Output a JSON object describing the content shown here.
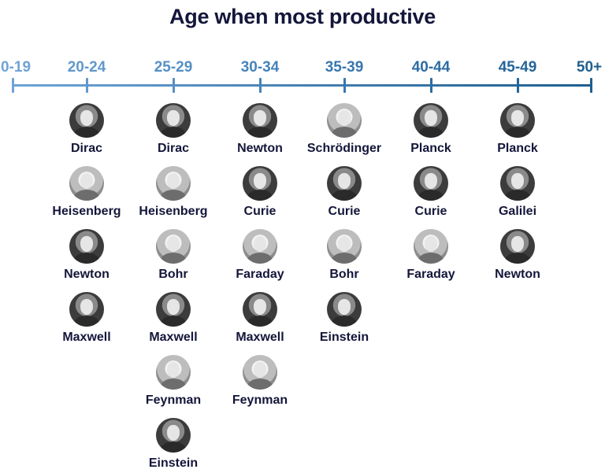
{
  "title": "Age when most productive",
  "colors": {
    "axis_start": "#6fa3d6",
    "axis_end": "#1f5f8f",
    "text": "#14163a"
  },
  "axis": {
    "labels": [
      "0-19",
      "20-24",
      "25-29",
      "30-34",
      "35-39",
      "40-44",
      "45-49",
      "50+"
    ],
    "label_colors": [
      "#6fa3d6",
      "#6198cc",
      "#5590c4",
      "#4583ba",
      "#3776ae",
      "#2c6ca3",
      "#24649a",
      "#1f5f8f"
    ]
  },
  "columns": [
    {
      "range": "20-24",
      "people": [
        {
          "name": "Dirac",
          "icon": "portrait-dirac"
        },
        {
          "name": "Heisenberg",
          "icon": "portrait-heisenberg"
        },
        {
          "name": "Newton",
          "icon": "portrait-newton"
        },
        {
          "name": "Maxwell",
          "icon": "portrait-maxwell"
        }
      ]
    },
    {
      "range": "25-29",
      "people": [
        {
          "name": "Dirac",
          "icon": "portrait-dirac"
        },
        {
          "name": "Heisenberg",
          "icon": "portrait-heisenberg"
        },
        {
          "name": "Bohr",
          "icon": "portrait-bohr"
        },
        {
          "name": "Maxwell",
          "icon": "portrait-maxwell"
        },
        {
          "name": "Feynman",
          "icon": "portrait-feynman"
        },
        {
          "name": "Einstein",
          "icon": "portrait-einstein"
        }
      ]
    },
    {
      "range": "30-34",
      "people": [
        {
          "name": "Newton",
          "icon": "portrait-newton"
        },
        {
          "name": "Curie",
          "icon": "portrait-curie"
        },
        {
          "name": "Faraday",
          "icon": "portrait-faraday"
        },
        {
          "name": "Maxwell",
          "icon": "portrait-maxwell"
        },
        {
          "name": "Feynman",
          "icon": "portrait-feynman"
        }
      ]
    },
    {
      "range": "35-39",
      "people": [
        {
          "name": "Schrödinger",
          "icon": "portrait-schrodinger"
        },
        {
          "name": "Curie",
          "icon": "portrait-curie"
        },
        {
          "name": "Bohr",
          "icon": "portrait-bohr"
        },
        {
          "name": "Einstein",
          "icon": "portrait-einstein"
        }
      ]
    },
    {
      "range": "40-44",
      "people": [
        {
          "name": "Planck",
          "icon": "portrait-planck"
        },
        {
          "name": "Curie",
          "icon": "portrait-curie"
        },
        {
          "name": "Faraday",
          "icon": "portrait-faraday"
        }
      ]
    },
    {
      "range": "45-49",
      "people": [
        {
          "name": "Planck",
          "icon": "portrait-planck"
        },
        {
          "name": "Galilei",
          "icon": "portrait-galilei"
        },
        {
          "name": "Newton",
          "icon": "portrait-newton"
        }
      ]
    }
  ]
}
